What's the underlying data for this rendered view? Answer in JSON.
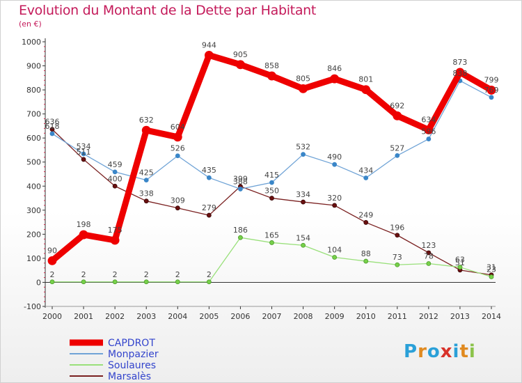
{
  "header": {
    "title": "Evolution du Montant de la Dette par Habitant",
    "subtitle": "(en €)"
  },
  "logo": {
    "text": "Proxiti",
    "letter_colors": [
      "#2aa0d8",
      "#e08a20",
      "#2aa0d8",
      "#d8322a",
      "#2aa0d8",
      "#e08a20",
      "#8bc34a"
    ]
  },
  "chart_data": {
    "type": "line",
    "title": "Evolution du Montant de la Dette par Habitant",
    "subtitle": "(en €)",
    "xlabel": "",
    "ylabel": "",
    "x": [
      "2000",
      "2001",
      "2002",
      "2003",
      "2004",
      "2005",
      "2006",
      "2007",
      "2008",
      "2009",
      "2010",
      "2011",
      "2012",
      "2013",
      "2014"
    ],
    "yticks": [
      -100,
      0,
      100,
      200,
      300,
      400,
      500,
      600,
      700,
      800,
      900,
      1000
    ],
    "ylim": [
      -100,
      1000
    ],
    "grid": false,
    "legend_position": "bottom-left",
    "series": [
      {
        "name": "CAPDROT",
        "color": "#ee0000",
        "values": [
          90,
          198,
          175,
          632,
          604,
          944,
          905,
          858,
          805,
          846,
          801,
          692,
          634,
          873,
          799
        ],
        "labels": [
          "90",
          "198",
          "175",
          "632",
          "604",
          "944",
          "905",
          "858",
          "805",
          "846",
          "801",
          "692",
          "634",
          "873",
          "799"
        ]
      },
      {
        "name": "Monpazier",
        "color": "#6fa3d6",
        "values": [
          618,
          534,
          459,
          425,
          526,
          435,
          388,
          415,
          532,
          490,
          434,
          527,
          596,
          838,
          769
        ],
        "labels": [
          "618",
          "534",
          "459",
          "425",
          "526",
          "435",
          "388",
          "415",
          "532",
          "490",
          "434",
          "527",
          "596",
          "838",
          "769"
        ]
      },
      {
        "name": "Soulaures",
        "color": "#99e07a",
        "values": [
          2,
          2,
          2,
          2,
          2,
          2,
          186,
          165,
          154,
          104,
          88,
          73,
          78,
          63,
          23
        ],
        "labels": [
          "2",
          "2",
          "2",
          "2",
          "2",
          "2",
          "186",
          "165",
          "154",
          "104",
          "88",
          "73",
          "78",
          "63",
          "23"
        ]
      },
      {
        "name": "Marsalès",
        "color": "#7a2020",
        "values": [
          636,
          511,
          400,
          338,
          309,
          279,
          399,
          350,
          334,
          320,
          249,
          196,
          123,
          51,
          31
        ],
        "labels": [
          "636",
          "511",
          "400",
          "338",
          "309",
          "279",
          "399",
          "350",
          "334",
          "320",
          "249",
          "196",
          "123",
          "51",
          "31"
        ]
      }
    ]
  }
}
